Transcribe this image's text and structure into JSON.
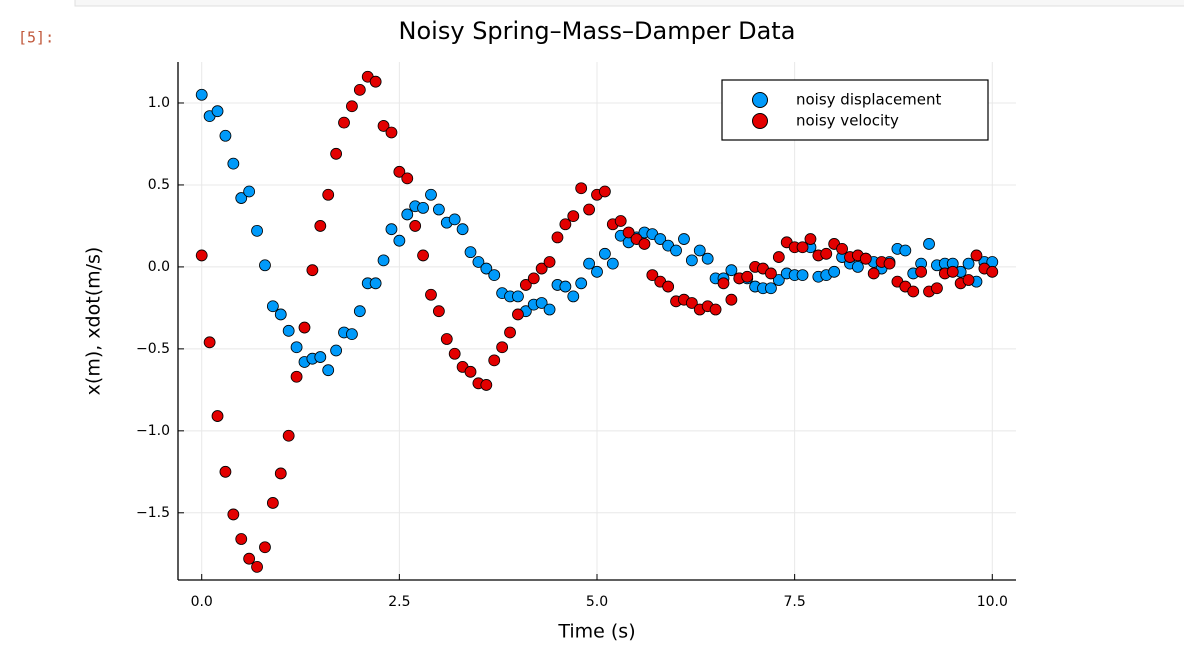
{
  "cell": {
    "prompt": "[5]:"
  },
  "chart_data": {
    "type": "scatter",
    "title": "Noisy Spring–Mass–Damper Data",
    "xlabel": "Time (s)",
    "ylabel": "x(m), xdot(m/s)",
    "xlim": [
      -0.3,
      10.3
    ],
    "ylim": [
      -1.91,
      1.25
    ],
    "xticks": [
      {
        "value": 0,
        "label": "0.0"
      },
      2.5,
      {
        "value": 5,
        "label": "5.0"
      },
      7.5,
      {
        "value": 10,
        "label": "10.0"
      }
    ],
    "yticks": [
      {
        "value": -1.5,
        "label": "−1.5"
      },
      {
        "value": -1,
        "label": "−1.0"
      },
      {
        "value": -0.5,
        "label": "−0.5"
      },
      {
        "value": 0,
        "label": "0.0"
      },
      0.5,
      {
        "value": 1,
        "label": "1.0"
      }
    ],
    "grid": true,
    "legend": "top-right",
    "x": [
      0,
      0.1,
      0.2,
      0.3,
      0.4,
      0.5,
      0.6,
      0.7,
      0.8,
      0.9,
      1,
      1.1,
      1.2,
      1.3,
      1.4,
      1.5,
      1.6,
      1.7,
      1.8,
      1.9,
      2,
      2.1,
      2.2,
      2.3,
      2.4,
      2.5,
      2.6,
      2.7,
      2.8,
      2.9,
      3,
      3.1,
      3.2,
      3.3,
      3.4,
      3.5,
      3.6,
      3.7,
      3.8,
      3.9,
      4,
      4.1,
      4.2,
      4.3,
      4.4,
      4.5,
      4.6,
      4.7,
      4.8,
      4.9,
      5,
      5.1,
      5.2,
      5.3,
      5.4,
      5.5,
      5.6,
      5.7,
      5.8,
      5.9,
      6,
      6.1,
      6.2,
      6.3,
      6.4,
      6.5,
      6.6,
      6.7,
      6.8,
      6.9,
      7,
      7.1,
      7.2,
      7.3,
      7.4,
      7.5,
      7.6,
      7.7,
      7.8,
      7.9,
      8,
      8.1,
      8.2,
      8.3,
      8.4,
      8.5,
      8.6,
      8.7,
      8.8,
      8.9,
      9,
      9.1,
      9.2,
      9.3,
      9.4,
      9.5,
      9.6,
      9.7,
      9.8,
      9.9,
      10
    ],
    "series": [
      {
        "name": "noisy displacement",
        "color": "#009afa",
        "values": [
          1.05,
          0.92,
          0.95,
          0.8,
          0.63,
          0.42,
          0.46,
          0.22,
          0.01,
          -0.24,
          -0.29,
          -0.39,
          -0.49,
          -0.58,
          -0.56,
          -0.55,
          -0.63,
          -0.51,
          -0.4,
          -0.41,
          -0.27,
          -0.1,
          -0.1,
          0.04,
          0.23,
          0.16,
          0.32,
          0.37,
          0.36,
          0.44,
          0.35,
          0.27,
          0.29,
          0.23,
          0.09,
          0.03,
          -0.01,
          -0.05,
          -0.16,
          -0.18,
          -0.18,
          -0.27,
          -0.23,
          -0.22,
          -0.26,
          -0.11,
          -0.12,
          -0.18,
          -0.1,
          0.02,
          -0.03,
          0.08,
          0.02,
          0.19,
          0.15,
          0.18,
          0.21,
          0.2,
          0.17,
          0.13,
          0.1,
          0.17,
          0.04,
          0.1,
          0.05,
          -0.07,
          -0.07,
          -0.02,
          -0.07,
          -0.07,
          -0.12,
          -0.13,
          -0.13,
          -0.08,
          -0.04,
          -0.05,
          -0.05,
          0.12,
          -0.06,
          -0.05,
          -0.03,
          0.06,
          0.02,
          0,
          0.05,
          0.03,
          -0.01,
          0.03,
          0.11,
          0.1,
          -0.04,
          0.02,
          0.14,
          0.01,
          0.02,
          0.02,
          -0.03,
          0.02,
          -0.09,
          0.03,
          0.03
        ]
      },
      {
        "name": "noisy velocity",
        "color": "#e30000",
        "values": [
          0.07,
          -0.46,
          -0.91,
          -1.25,
          -1.51,
          -1.66,
          -1.78,
          -1.83,
          -1.71,
          -1.44,
          -1.26,
          -1.03,
          -0.67,
          -0.37,
          -0.02,
          0.25,
          0.44,
          0.69,
          0.88,
          0.98,
          1.08,
          1.16,
          1.13,
          0.86,
          0.82,
          0.58,
          0.54,
          0.25,
          0.07,
          -0.17,
          -0.27,
          -0.44,
          -0.53,
          -0.61,
          -0.64,
          -0.71,
          -0.72,
          -0.57,
          -0.49,
          -0.4,
          -0.29,
          -0.11,
          -0.07,
          -0.01,
          0.03,
          0.18,
          0.26,
          0.31,
          0.48,
          0.35,
          0.44,
          0.46,
          0.26,
          0.28,
          0.21,
          0.17,
          0.14,
          -0.05,
          -0.09,
          -0.12,
          -0.21,
          -0.2,
          -0.22,
          -0.26,
          -0.24,
          -0.26,
          -0.1,
          -0.2,
          -0.07,
          -0.06,
          0,
          -0.01,
          -0.04,
          0.06,
          0.15,
          0.12,
          0.12,
          0.17,
          0.07,
          0.08,
          0.14,
          0.11,
          0.06,
          0.07,
          0.05,
          -0.04,
          0.03,
          0.02,
          -0.09,
          -0.12,
          -0.15,
          -0.03,
          -0.15,
          -0.13,
          -0.04,
          -0.03,
          -0.1,
          -0.08,
          0.07,
          -0.01,
          -0.03
        ]
      }
    ]
  }
}
